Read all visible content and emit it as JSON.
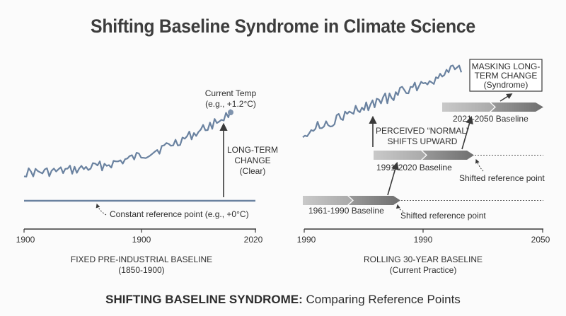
{
  "title": "Shifting Baseline Syndrome in Climate Science",
  "left_panel": {
    "caption_main": "FIXED PRE-INDUSTRIAL BASELINE",
    "caption_sub": "(1850-1900)",
    "axis_ticks": [
      "1900",
      "1900",
      "2020"
    ],
    "current_temp_line1": "Current Temp",
    "current_temp_line2": "(e.g., +1.2°C)",
    "longterm_line1": "LONG-TERM",
    "longterm_line2": "CHANGE",
    "longterm_line3": "(Clear)",
    "reference_label": "Constant reference point (e.g., +0°C)"
  },
  "right_panel": {
    "caption_main": "ROLLING 30-YEAR BASELINE",
    "caption_sub": "(Current Practice)",
    "axis_ticks": [
      "1990",
      "1990",
      "2050"
    ],
    "baseline_1961": "1961-1990 Baseline",
    "baseline_1991": "1991-2020 Baseline",
    "baseline_2021": "2021-2050 Baseline",
    "shifted_ref_1": "Shifted reference point",
    "shifted_ref_2": "Shifted reference point",
    "perceived_line1": "PERCEIVED “NORMAL”",
    "perceived_line2": "SHIFTS UPWARD",
    "masking_line1": "MASKING LONG-",
    "masking_line2": "TERM CHANGE",
    "masking_line3": "(Syndrome)"
  },
  "footer": {
    "bold": "SHIFTING BASELINE SYNDROME:",
    "rest": " Comparing Reference Points"
  },
  "colors": {
    "series": "#6a82a0",
    "reference_line": "#6a82a0",
    "arrow_light": "#bcbcbc",
    "arrow_dark": "#7e7e7e",
    "axis": "#3a3a3a"
  }
}
